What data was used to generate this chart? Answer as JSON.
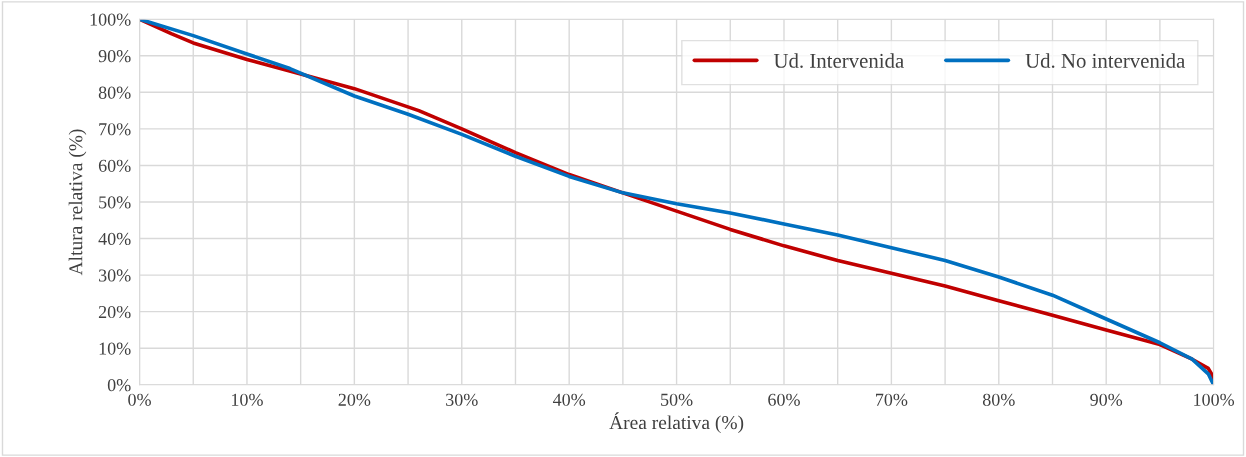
{
  "chart_data": {
    "type": "line",
    "xlabel": "Área relativa (%)",
    "ylabel": "Altura relativa (%)",
    "xlim": [
      0,
      100
    ],
    "ylim": [
      0,
      100
    ],
    "xticks": [
      {
        "value": 0,
        "label": "0%"
      },
      {
        "value": 5,
        "label": null
      },
      {
        "value": 10,
        "label": "10%"
      },
      {
        "value": 15,
        "label": null
      },
      {
        "value": 20,
        "label": "20%"
      },
      {
        "value": 25,
        "label": null
      },
      {
        "value": 30,
        "label": "30%"
      },
      {
        "value": 35,
        "label": null
      },
      {
        "value": 40,
        "label": "40%"
      },
      {
        "value": 45,
        "label": null
      },
      {
        "value": 50,
        "label": "50%"
      },
      {
        "value": 55,
        "label": null
      },
      {
        "value": 60,
        "label": "60%"
      },
      {
        "value": 65,
        "label": null
      },
      {
        "value": 70,
        "label": "70%"
      },
      {
        "value": 75,
        "label": null
      },
      {
        "value": 80,
        "label": "80%"
      },
      {
        "value": 85,
        "label": null
      },
      {
        "value": 90,
        "label": "90%"
      },
      {
        "value": 95,
        "label": null
      },
      {
        "value": 100,
        "label": "100%"
      }
    ],
    "yticks": [
      {
        "value": 0,
        "label": "0%"
      },
      {
        "value": 10,
        "label": "10%"
      },
      {
        "value": 20,
        "label": "20%"
      },
      {
        "value": 30,
        "label": "30%"
      },
      {
        "value": 40,
        "label": "40%"
      },
      {
        "value": 50,
        "label": "50%"
      },
      {
        "value": 60,
        "label": "60%"
      },
      {
        "value": 70,
        "label": "70%"
      },
      {
        "value": 80,
        "label": "80%"
      },
      {
        "value": 90,
        "label": "90%"
      },
      {
        "value": 100,
        "label": "100%"
      }
    ],
    "grid": true,
    "legend": "top right",
    "marker": "none",
    "line_style": "solid",
    "series": [
      {
        "name": "Ud. Intervenida",
        "color": "#c00000",
        "x": [
          0,
          3,
          5,
          10,
          15,
          20,
          26,
          30,
          35,
          40,
          45,
          50,
          55,
          60,
          65,
          70,
          75,
          80,
          85,
          90,
          95,
          98,
          99.5,
          100,
          100
        ],
        "values": [
          100,
          96,
          93.5,
          89,
          85,
          81,
          75,
          70,
          63.5,
          57.5,
          52.5,
          47.5,
          42.5,
          38,
          34,
          30.5,
          27,
          23,
          19,
          15,
          11,
          7,
          4.5,
          2,
          0
        ]
      },
      {
        "name": "Ud. No intervenida",
        "color": "#0070c0",
        "x": [
          0,
          5,
          10,
          14,
          20,
          25,
          30,
          35,
          40,
          45,
          50,
          55,
          60,
          65,
          70,
          75,
          80,
          85,
          90,
          95,
          98,
          99.5,
          100
        ],
        "values": [
          100,
          95.5,
          90.5,
          86.5,
          79,
          74,
          68.5,
          62.5,
          57,
          52.5,
          49.5,
          47,
          44,
          41,
          37.5,
          34,
          29.5,
          24.5,
          18,
          11.5,
          7,
          3,
          0
        ]
      }
    ]
  }
}
